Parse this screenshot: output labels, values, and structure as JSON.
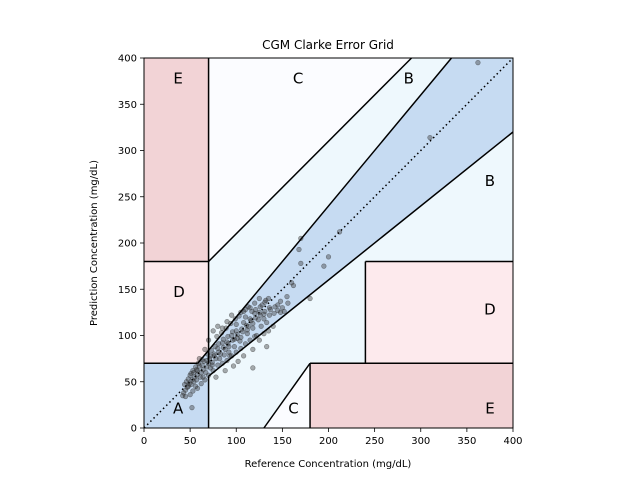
{
  "chart_data": {
    "type": "scatter",
    "title": "CGM Clarke Error Grid",
    "xlabel": "Reference Concentration (mg/dL)",
    "ylabel": "Prediction Concentration (mg/dL)",
    "xlim": [
      0,
      400
    ],
    "ylim": [
      0,
      400
    ],
    "xticks": [
      "0",
      "50",
      "100",
      "150",
      "200",
      "250",
      "300",
      "350",
      "400"
    ],
    "yticks": [
      "0",
      "50",
      "100",
      "150",
      "200",
      "250",
      "300",
      "350",
      "400"
    ],
    "grid": false,
    "legend": "none",
    "colors": {
      "zone_a": "#c6dbf2",
      "zone_b": "#eef8fd",
      "zone_c": "#fbfcff",
      "zone_d": "#fdeaed",
      "zone_e": "#f2d3d6",
      "points": "#333333",
      "lines": "#000000"
    },
    "zone_labels": [
      {
        "text": "A",
        "x": 37,
        "y": 22
      },
      {
        "text": "B",
        "x": 287,
        "y": 379
      },
      {
        "text": "B",
        "x": 375,
        "y": 268
      },
      {
        "text": "C",
        "x": 167,
        "y": 379
      },
      {
        "text": "C",
        "x": 162,
        "y": 22
      },
      {
        "text": "D",
        "x": 38,
        "y": 148
      },
      {
        "text": "D",
        "x": 375,
        "y": 129
      },
      {
        "text": "E",
        "x": 37,
        "y": 379
      },
      {
        "text": "E",
        "x": 375,
        "y": 22
      }
    ],
    "series": [
      {
        "points": [
          [
            362,
            395
          ],
          [
            310,
            314
          ],
          [
            212,
            212
          ],
          [
            170,
            205
          ],
          [
            168,
            193
          ],
          [
            200,
            185
          ],
          [
            195,
            175
          ],
          [
            170,
            178
          ],
          [
            160,
            157
          ],
          [
            162,
            154
          ],
          [
            152,
            126
          ],
          [
            148,
            125
          ],
          [
            145,
            133
          ],
          [
            180,
            140
          ],
          [
            135,
            140
          ],
          [
            132,
            138
          ],
          [
            128,
            133
          ],
          [
            136,
            130
          ],
          [
            130,
            118
          ],
          [
            125,
            125
          ],
          [
            120,
            124
          ],
          [
            115,
            118
          ],
          [
            110,
            120
          ],
          [
            108,
            114
          ],
          [
            140,
            110
          ],
          [
            135,
            105
          ],
          [
            130,
            102
          ],
          [
            125,
            95
          ],
          [
            133,
            88
          ],
          [
            122,
            100
          ],
          [
            118,
            108
          ],
          [
            112,
            102
          ],
          [
            105,
            98
          ],
          [
            100,
            105
          ],
          [
            98,
            96
          ],
          [
            95,
            100
          ],
          [
            92,
            88
          ],
          [
            90,
            93
          ],
          [
            88,
            85
          ],
          [
            85,
            92
          ],
          [
            83,
            80
          ],
          [
            80,
            86
          ],
          [
            78,
            75
          ],
          [
            76,
            80
          ],
          [
            74,
            71
          ],
          [
            72,
            78
          ],
          [
            70,
            70
          ],
          [
            68,
            66
          ],
          [
            65,
            72
          ],
          [
            64,
            63
          ],
          [
            62,
            60
          ],
          [
            60,
            67
          ],
          [
            58,
            58
          ],
          [
            57,
            63
          ],
          [
            55,
            55
          ],
          [
            54,
            60
          ],
          [
            52,
            52
          ],
          [
            50,
            57
          ],
          [
            49,
            48
          ],
          [
            48,
            53
          ],
          [
            47,
            44
          ],
          [
            46,
            50
          ],
          [
            45,
            41
          ],
          [
            44,
            47
          ],
          [
            43,
            38
          ],
          [
            42,
            35
          ],
          [
            45,
            34
          ],
          [
            50,
            36
          ],
          [
            53,
            40
          ],
          [
            56,
            45
          ],
          [
            52,
            22
          ],
          [
            60,
            75
          ],
          [
            66,
            85
          ],
          [
            70,
            95
          ],
          [
            75,
            105
          ],
          [
            80,
            110
          ],
          [
            85,
            108
          ],
          [
            90,
            115
          ],
          [
            95,
            122
          ],
          [
            100,
            112
          ],
          [
            105,
            125
          ],
          [
            110,
            128
          ],
          [
            115,
            130
          ],
          [
            120,
            135
          ],
          [
            125,
            140
          ],
          [
            70,
            57
          ],
          [
            75,
            62
          ],
          [
            80,
            68
          ],
          [
            85,
            70
          ],
          [
            90,
            73
          ],
          [
            95,
            78
          ],
          [
            100,
            82
          ],
          [
            105,
            86
          ],
          [
            110,
            91
          ],
          [
            115,
            95
          ],
          [
            120,
            99
          ],
          [
            102,
            72
          ],
          [
            108,
            78
          ],
          [
            118,
            85
          ],
          [
            97,
            67
          ],
          [
            88,
            62
          ],
          [
            78,
            55
          ],
          [
            66,
            52
          ],
          [
            62,
            48
          ],
          [
            58,
            43
          ],
          [
            64,
            55
          ],
          [
            72,
            65
          ],
          [
            82,
            75
          ],
          [
            92,
            82
          ],
          [
            98,
            88
          ],
          [
            104,
            94
          ],
          [
            112,
            106
          ],
          [
            118,
            113
          ],
          [
            124,
            117
          ],
          [
            130,
            123
          ],
          [
            137,
            128
          ],
          [
            142,
            131
          ],
          [
            148,
            137
          ],
          [
            155,
            142
          ],
          [
            127,
            110
          ],
          [
            133,
            114
          ],
          [
            113,
            110
          ],
          [
            107,
            104
          ],
          [
            101,
            101
          ],
          [
            96,
            104
          ],
          [
            91,
            99
          ],
          [
            86,
            96
          ],
          [
            81,
            91
          ],
          [
            77,
            88
          ],
          [
            73,
            84
          ],
          [
            69,
            80
          ],
          [
            63,
            74
          ],
          [
            59,
            70
          ],
          [
            56,
            66
          ],
          [
            53,
            62
          ],
          [
            51,
            59
          ],
          [
            79,
            99
          ],
          [
            84,
            103
          ],
          [
            89,
            108
          ],
          [
            94,
            113
          ],
          [
            99,
            118
          ],
          [
            103,
            121
          ],
          [
            108,
            126
          ],
          [
            113,
            131
          ],
          [
            117,
            126
          ],
          [
            121,
            128
          ],
          [
            126,
            131
          ],
          [
            131,
            136
          ],
          [
            118,
            65
          ],
          [
            93,
            78
          ],
          [
            87,
            79
          ],
          [
            74,
            68
          ],
          [
            67,
            60
          ],
          [
            61,
            55
          ],
          [
            57,
            52
          ],
          [
            54,
            50
          ],
          [
            51,
            47
          ],
          [
            48,
            45
          ],
          [
            58,
            62
          ],
          [
            63,
            68
          ],
          [
            68,
            73
          ],
          [
            71,
            75
          ],
          [
            76,
            78
          ],
          [
            81,
            82
          ],
          [
            86,
            87
          ],
          [
            91,
            91
          ],
          [
            96,
            95
          ],
          [
            101,
            97
          ],
          [
            106,
            107
          ],
          [
            111,
            111
          ],
          [
            116,
            116
          ],
          [
            121,
            119
          ],
          [
            126,
            122
          ],
          [
            131,
            126
          ],
          [
            136,
            122
          ],
          [
            141,
            124
          ],
          [
            145,
            127
          ],
          [
            150,
            130
          ],
          [
            156,
            135
          ]
        ]
      }
    ]
  }
}
